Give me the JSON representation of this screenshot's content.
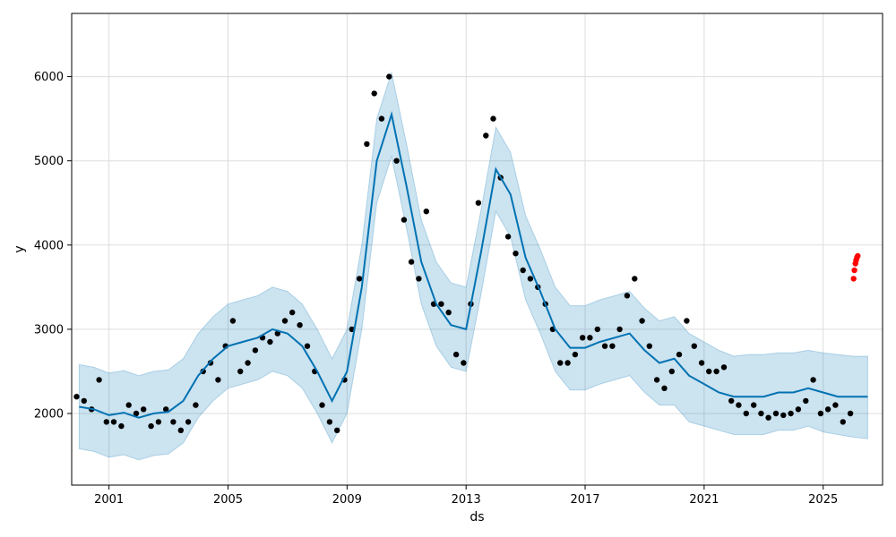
{
  "chart_data": {
    "type": "scatter",
    "title": "",
    "xlabel": "ds",
    "ylabel": "y",
    "x_range": [
      "1999-10-01",
      "2026-12-31"
    ],
    "ylim": [
      1150,
      6750
    ],
    "x_ticks": [
      "2001",
      "2005",
      "2009",
      "2013",
      "2017",
      "2021",
      "2025"
    ],
    "y_ticks": [
      2000,
      3000,
      4000,
      5000,
      6000
    ],
    "grid": true,
    "legend": "none",
    "colors": {
      "observed": "#000000",
      "forecast_line": "#0072B2",
      "uncertainty_band": "#0072B2",
      "extra_points": "#ff0000"
    },
    "series": [
      {
        "role": "forecast",
        "x": [
          "2000-01-01",
          "2000-07-01",
          "2001-01-01",
          "2001-07-01",
          "2002-01-01",
          "2002-07-01",
          "2003-01-01",
          "2003-07-01",
          "2004-01-01",
          "2004-07-01",
          "2005-01-01",
          "2005-07-01",
          "2006-01-01",
          "2006-07-01",
          "2007-01-01",
          "2007-07-01",
          "2008-01-01",
          "2008-07-01",
          "2009-01-01",
          "2009-07-01",
          "2010-01-01",
          "2010-07-01",
          "2011-01-01",
          "2011-07-01",
          "2012-01-01",
          "2012-07-01",
          "2013-01-01",
          "2013-07-01",
          "2014-01-01",
          "2014-07-01",
          "2015-01-01",
          "2015-07-01",
          "2016-01-01",
          "2016-07-01",
          "2017-01-01",
          "2017-07-01",
          "2018-01-01",
          "2018-07-01",
          "2019-01-01",
          "2019-07-01",
          "2020-01-01",
          "2020-07-01",
          "2021-01-01",
          "2021-07-01",
          "2022-01-01",
          "2022-07-01",
          "2023-01-01",
          "2023-07-01",
          "2024-01-01",
          "2024-07-01",
          "2025-01-01",
          "2025-07-01",
          "2026-01-01",
          "2026-07-01"
        ],
        "y": [
          2080,
          2050,
          1980,
          2010,
          1950,
          2000,
          2020,
          2150,
          2450,
          2650,
          2800,
          2850,
          2900,
          3000,
          2950,
          2800,
          2500,
          2150,
          2500,
          3500,
          5000,
          5550,
          4700,
          3800,
          3300,
          3050,
          3000,
          3900,
          4900,
          4600,
          3850,
          3450,
          3000,
          2780,
          2780,
          2850,
          2900,
          2950,
          2750,
          2600,
          2650,
          2450,
          2350,
          2250,
          2200,
          2200,
          2200,
          2250,
          2250,
          2300,
          2250,
          2200,
          2200,
          2200
        ],
        "y_lower": [
          1580,
          1550,
          1480,
          1510,
          1450,
          1500,
          1520,
          1650,
          1950,
          2150,
          2300,
          2350,
          2400,
          2500,
          2450,
          2300,
          2000,
          1650,
          2000,
          3000,
          4500,
          5050,
          4200,
          3300,
          2800,
          2550,
          2500,
          3400,
          4400,
          4100,
          3350,
          2950,
          2500,
          2280,
          2280,
          2350,
          2400,
          2450,
          2250,
          2100,
          2100,
          1900,
          1850,
          1800,
          1750,
          1750,
          1750,
          1800,
          1800,
          1850,
          1780,
          1750,
          1720,
          1700
        ],
        "y_upper": [
          2580,
          2550,
          2480,
          2510,
          2450,
          2500,
          2520,
          2650,
          2950,
          3150,
          3300,
          3350,
          3400,
          3500,
          3450,
          3300,
          3000,
          2650,
          3000,
          4000,
          5500,
          6050,
          5200,
          4300,
          3800,
          3550,
          3500,
          4400,
          5400,
          5100,
          4350,
          3950,
          3500,
          3280,
          3280,
          3350,
          3400,
          3450,
          3250,
          3100,
          3150,
          2950,
          2850,
          2750,
          2680,
          2700,
          2700,
          2720,
          2720,
          2750,
          2720,
          2700,
          2680,
          2680
        ]
      },
      {
        "role": "observed",
        "x": [
          "1999-12-01",
          "2000-03-01",
          "2000-06-01",
          "2000-09-01",
          "2000-12-01",
          "2001-03-01",
          "2001-06-01",
          "2001-09-01",
          "2001-12-01",
          "2002-03-01",
          "2002-06-01",
          "2002-09-01",
          "2002-12-01",
          "2003-03-01",
          "2003-06-01",
          "2003-09-01",
          "2003-12-01",
          "2004-03-01",
          "2004-06-01",
          "2004-09-01",
          "2004-12-01",
          "2005-03-01",
          "2005-06-01",
          "2005-09-01",
          "2005-12-01",
          "2006-03-01",
          "2006-06-01",
          "2006-09-01",
          "2006-12-01",
          "2007-03-01",
          "2007-06-01",
          "2007-09-01",
          "2007-12-01",
          "2008-03-01",
          "2008-06-01",
          "2008-09-01",
          "2008-12-01",
          "2009-03-01",
          "2009-06-01",
          "2009-09-01",
          "2009-12-01",
          "2010-03-01",
          "2010-06-01",
          "2010-09-01",
          "2010-12-01",
          "2011-03-01",
          "2011-06-01",
          "2011-09-01",
          "2011-12-01",
          "2012-03-01",
          "2012-06-01",
          "2012-09-01",
          "2012-12-01",
          "2013-03-01",
          "2013-06-01",
          "2013-09-01",
          "2013-12-01",
          "2014-03-01",
          "2014-06-01",
          "2014-09-01",
          "2014-12-01",
          "2015-03-01",
          "2015-06-01",
          "2015-09-01",
          "2015-12-01",
          "2016-03-01",
          "2016-06-01",
          "2016-09-01",
          "2016-12-01",
          "2017-03-01",
          "2017-06-01",
          "2017-09-01",
          "2017-12-01",
          "2018-03-01",
          "2018-06-01",
          "2018-09-01",
          "2018-12-01",
          "2019-03-01",
          "2019-06-01",
          "2019-09-01",
          "2019-12-01",
          "2020-03-01",
          "2020-06-01",
          "2020-09-01",
          "2020-12-01",
          "2021-03-01",
          "2021-06-01",
          "2021-09-01",
          "2021-12-01",
          "2022-03-01",
          "2022-06-01",
          "2022-09-01",
          "2022-12-01",
          "2023-03-01",
          "2023-06-01",
          "2023-09-01",
          "2023-12-01",
          "2024-03-01",
          "2024-06-01",
          "2024-09-01",
          "2024-12-01",
          "2025-03-01",
          "2025-06-01",
          "2025-09-01",
          "2025-12-01"
        ],
        "y": [
          2200,
          2150,
          2050,
          2400,
          1900,
          1900,
          1850,
          2100,
          2000,
          2050,
          1850,
          1900,
          2050,
          1900,
          1800,
          1900,
          2100,
          2500,
          2600,
          2400,
          2800,
          3100,
          2500,
          2600,
          2750,
          2900,
          2850,
          2950,
          3100,
          3200,
          3050,
          2800,
          2500,
          2100,
          1900,
          1800,
          2400,
          3000,
          3600,
          5200,
          5800,
          5500,
          6000,
          5000,
          4300,
          3800,
          3600,
          4400,
          3300,
          3300,
          3200,
          2700,
          2600,
          3300,
          4500,
          5300,
          5500,
          4800,
          4100,
          3900,
          3700,
          3600,
          3500,
          3300,
          3000,
          2600,
          2600,
          2700,
          2900,
          2900,
          3000,
          2800,
          2800,
          3000,
          3400,
          3600,
          3100,
          2800,
          2400,
          2300,
          2500,
          2700,
          3100,
          2800,
          2600,
          2500,
          2500,
          2550,
          2150,
          2100,
          2000,
          2100,
          2000,
          1950,
          2000,
          1980,
          2000,
          2050,
          2150,
          2400,
          2000,
          2050,
          2100,
          1900,
          2000
        ]
      },
      {
        "role": "extra",
        "x": [
          "2026-01-10",
          "2026-01-20",
          "2026-02-01",
          "2026-02-10",
          "2026-02-20",
          "2026-03-01"
        ],
        "y": [
          3600,
          3700,
          3780,
          3820,
          3850,
          3870
        ]
      }
    ]
  }
}
